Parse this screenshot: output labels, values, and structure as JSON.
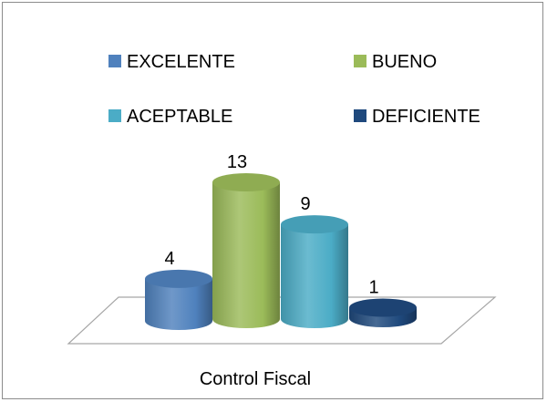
{
  "chart_data": {
    "type": "bar",
    "style": "3d-cylinder",
    "categories": [
      "Control Fiscal"
    ],
    "series": [
      {
        "name": "EXCELENTE",
        "values": [
          4
        ],
        "color": "#4F81BD"
      },
      {
        "name": "BUENO",
        "values": [
          13
        ],
        "color": "#9BBB59"
      },
      {
        "name": "ACEPTABLE",
        "values": [
          9
        ],
        "color": "#4BACC6"
      },
      {
        "name": "DEFICIENTE",
        "values": [
          1
        ],
        "color": "#1F497D"
      }
    ],
    "ylim": [
      0,
      13
    ],
    "grid": false,
    "legend_position": "top",
    "data_labels": true
  }
}
